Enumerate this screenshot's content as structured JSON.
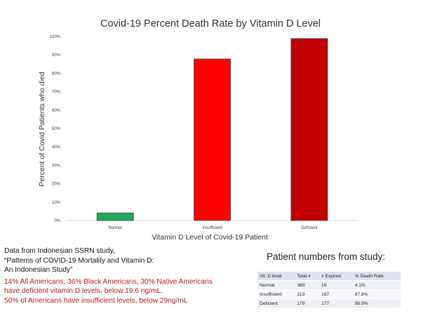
{
  "chart_data": {
    "type": "bar",
    "title": "Covid-19 Percent Death Rate by Vitamin D Level",
    "xlabel": "Vitamin D Level of Covid-19 Patient",
    "ylabel": "Percent of Covid Patients who died",
    "categories": [
      "Normal",
      "Insufficient",
      "Deficient"
    ],
    "values": [
      4.1,
      87.8,
      98.9
    ],
    "ylim": [
      0,
      100
    ],
    "yticks": [
      "0%",
      "10%",
      "20%",
      "30%",
      "40%",
      "50%",
      "60%",
      "70%",
      "80%",
      "90%",
      "100%"
    ],
    "bar_colors": [
      "#1faa5a",
      "#ff0000",
      "#c00000"
    ],
    "grid": false,
    "legend": "none"
  },
  "notes": {
    "source_lines": [
      "Data from Indonesian SSRN study,",
      "“Patterns of COVID-19 Mortality and Vitamin D:",
      "An Indonesian Study”"
    ],
    "red_lines": [
      "14% All Americans, 36% Black Americans, 30% Native Americans",
      "have deficient vitamin D levels, below 19.6 ng/mL.",
      "50% of Americans have insufficient levels, below 29ng/mL"
    ]
  },
  "patient_table": {
    "heading": "Patient numbers from study:",
    "columns": [
      "Vit. D level",
      "Total #",
      "# Expired",
      "% Death Rate"
    ],
    "rows": [
      [
        "Normal",
        "388",
        "16",
        "4.1%"
      ],
      [
        "Insufficient",
        "213",
        "187",
        "87.8%"
      ],
      [
        "Deficient",
        "179",
        "177",
        "98.9%"
      ]
    ]
  }
}
